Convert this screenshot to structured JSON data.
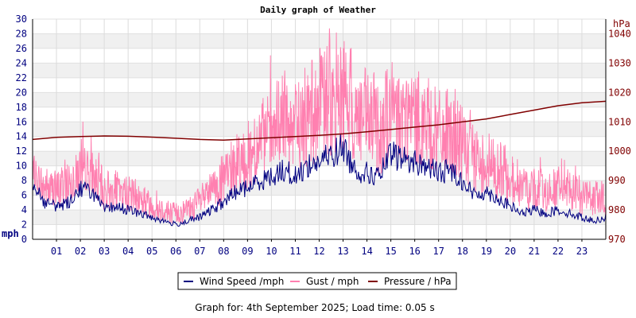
{
  "chart_data": {
    "type": "line",
    "title": "Daily graph of Weather",
    "left_axis": {
      "unit_label": "mph",
      "ylim": [
        0,
        30
      ],
      "ticks": [
        "0",
        "2",
        "4",
        "6",
        "8",
        "10",
        "12",
        "14",
        "16",
        "18",
        "20",
        "22",
        "24",
        "26",
        "28",
        "30"
      ],
      "color": "#000080"
    },
    "right_axis": {
      "unit_label": "hPa",
      "ylim": [
        970,
        1045
      ],
      "ticks": [
        "970",
        "980",
        "990",
        "1000",
        "1010",
        "1020",
        "1030",
        "1040"
      ],
      "color": "#800000"
    },
    "x_axis": {
      "xlim": [
        0,
        24
      ],
      "ticks": [
        "01",
        "02",
        "03",
        "04",
        "05",
        "06",
        "07",
        "08",
        "09",
        "10",
        "11",
        "12",
        "13",
        "14",
        "15",
        "16",
        "17",
        "18",
        "19",
        "20",
        "21",
        "22",
        "23"
      ],
      "color": "#000080"
    },
    "grid": true,
    "legend_position": "bottom",
    "series": [
      {
        "name": "Wind Speed /mph",
        "axis": "left",
        "color": "#000080",
        "x": [
          0,
          0.5,
          1,
          1.5,
          2,
          2.5,
          3,
          3.5,
          4,
          4.5,
          5,
          5.5,
          6,
          6.5,
          7,
          7.5,
          8,
          8.5,
          9,
          9.5,
          10,
          10.5,
          11,
          11.5,
          12,
          12.5,
          13,
          13.5,
          14,
          14.5,
          15,
          15.5,
          16,
          16.5,
          17,
          17.5,
          18,
          18.5,
          19,
          19.5,
          20,
          20.5,
          21,
          21.5,
          22,
          22.5,
          23,
          23.5,
          24
        ],
        "y": [
          8,
          5,
          4.5,
          5,
          7,
          6.5,
          4,
          4.5,
          4,
          3.5,
          3,
          2.5,
          2,
          2.5,
          3,
          4,
          5,
          6.5,
          7,
          8,
          8.5,
          9.5,
          8.5,
          10,
          10.5,
          11.5,
          12.5,
          9.5,
          9,
          8.5,
          11.5,
          11,
          10.5,
          10,
          9,
          9.5,
          8,
          6,
          6.5,
          5.5,
          4.5,
          3.5,
          4,
          3.5,
          4,
          3.5,
          3,
          2.5,
          3
        ]
      },
      {
        "name": "Gust / mph",
        "axis": "left",
        "color": "#ff80b0",
        "x": [
          0,
          0.5,
          1,
          1.5,
          2,
          2.5,
          3,
          3.5,
          4,
          4.5,
          5,
          5.5,
          6,
          6.5,
          7,
          7.5,
          8,
          8.5,
          9,
          9.5,
          10,
          10.5,
          11,
          11.5,
          12,
          12.5,
          13,
          13.5,
          14,
          14.5,
          15,
          15.5,
          16,
          16.5,
          17,
          17.5,
          18,
          18.5,
          19,
          19.5,
          20,
          20.5,
          21,
          21.5,
          22,
          22.5,
          23,
          23.5,
          24
        ],
        "y": [
          8,
          7,
          6.5,
          8,
          9,
          8.5,
          6.5,
          6.5,
          6,
          5.5,
          4.5,
          4,
          3.5,
          4,
          5,
          6.5,
          8,
          10,
          11,
          13,
          14,
          16,
          15,
          16.5,
          18,
          19,
          20,
          17,
          16,
          15.5,
          17,
          16.5,
          16,
          15.5,
          14,
          14,
          12.5,
          10.5,
          10.5,
          9.5,
          8.5,
          7,
          7,
          6.5,
          7,
          6.5,
          6,
          5.5,
          5.5
        ]
      },
      {
        "name": "Pressure / hPa",
        "axis": "right",
        "color": "#800000",
        "x": [
          0,
          1,
          2,
          3,
          4,
          5,
          6,
          7,
          8,
          9,
          10,
          11,
          12,
          13,
          14,
          15,
          16,
          17,
          18,
          19,
          20,
          21,
          22,
          23,
          24
        ],
        "y": [
          1004,
          1004.7,
          1005,
          1005.2,
          1005.1,
          1004.8,
          1004.4,
          1004,
          1003.8,
          1004.2,
          1004.6,
          1005,
          1005.4,
          1005.9,
          1006.6,
          1007.4,
          1008.2,
          1009,
          1010,
          1011,
          1012.5,
          1014,
          1015.5,
          1016.5,
          1017
        ]
      }
    ],
    "footer": "Graph for: 4th September 2025; Load time: 0.05 s"
  }
}
